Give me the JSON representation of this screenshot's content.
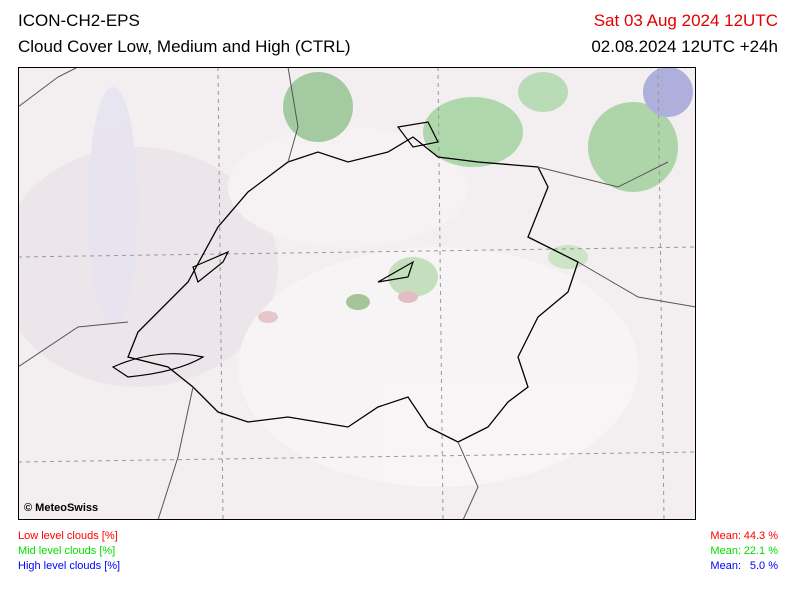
{
  "header": {
    "title": "ICON-CH2-EPS",
    "subtitle": "Cloud Cover Low, Medium and High (CTRL)",
    "valid_time": "Sat 03 Aug 2024 12UTC",
    "run_time": "02.08.2024 12UTC +24h"
  },
  "map": {
    "copyright": "© MeteoSwiss"
  },
  "legend": [
    {
      "label": "Low level clouds [%]",
      "mean_label": "Mean:",
      "mean": "44.3 %",
      "color": "#ff0000"
    },
    {
      "label": "Mid level clouds [%]",
      "mean_label": "Mean:",
      "mean": "22.1 %",
      "color": "#00dd00"
    },
    {
      "label": "High level clouds [%]",
      "mean_label": "Mean:",
      "mean": "5.0 %",
      "color": "#0000ff"
    }
  ]
}
